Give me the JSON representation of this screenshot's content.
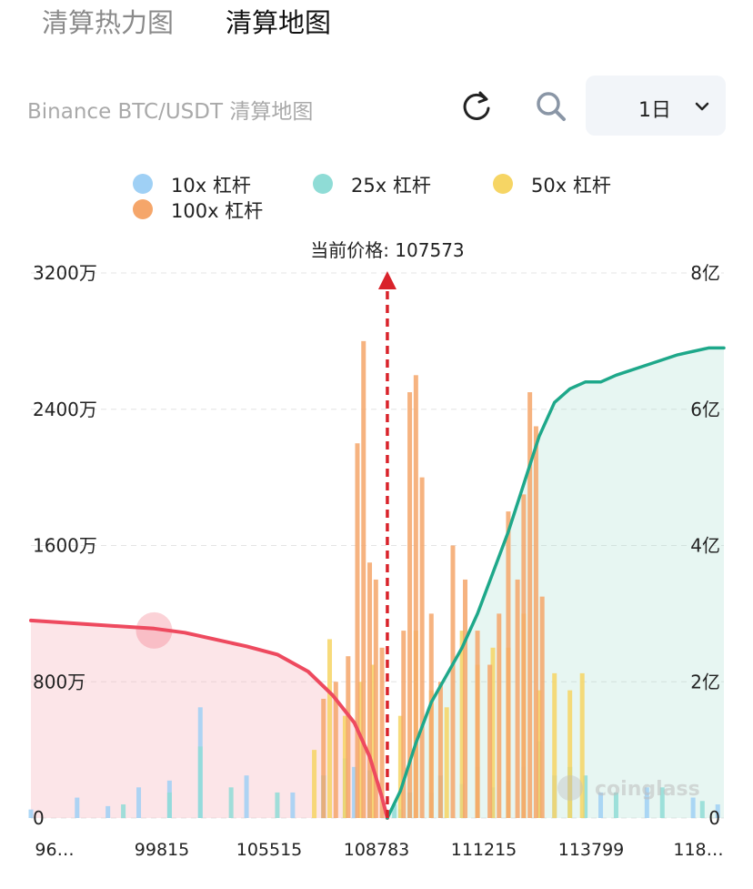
{
  "tabs": [
    {
      "label": "清算热力图",
      "active": false
    },
    {
      "label": "清算地图",
      "active": true
    }
  ],
  "header": {
    "subtitle": "Binance BTC/USDT 清算地图",
    "timeframe": "1日",
    "icons": [
      "refresh-icon",
      "search-icon",
      "chevron-down-icon"
    ]
  },
  "colors": {
    "lev10": "#9fd0f5",
    "lev25": "#8fdcd6",
    "lev50": "#f6d564",
    "lev100": "#f5a66a",
    "short_cum": "#ee4a5f",
    "long_cum": "#1ea88a",
    "current_price": "#d9232b"
  },
  "chart_data": {
    "type": "bar",
    "title": "",
    "current_price_label": "当前价格: 107573",
    "current_price": 107573,
    "legend": [
      {
        "name": "10x 杠杆",
        "color": "#9fd0f5"
      },
      {
        "name": "25x 杠杆",
        "color": "#8fdcd6"
      },
      {
        "name": "50x 杠杆",
        "color": "#f6d564"
      },
      {
        "name": "100x 杠杆",
        "color": "#f5a66a"
      }
    ],
    "legend_placement": "top",
    "x_tick_labels": [
      "96…",
      "99815",
      "105515",
      "108783",
      "111215",
      "113799",
      "118…"
    ],
    "x_range": [
      96000,
      118500
    ],
    "y_left": {
      "ticks": [
        "0",
        "800万",
        "1600万",
        "2400万",
        "3200万"
      ],
      "range": [
        0,
        32000000
      ]
    },
    "y_right": {
      "ticks": [
        "0",
        "2亿",
        "4亿",
        "6亿",
        "8亿"
      ],
      "range": [
        0,
        800000000
      ]
    },
    "grid": "horizontal dashed",
    "watermark": "coinglass",
    "series": [
      {
        "name": "10x 杠杆",
        "type": "bar",
        "x": [
          96000,
          97500,
          98500,
          99500,
          100500,
          101500,
          103000,
          104500,
          105500,
          106500,
          107000,
          108000,
          109000,
          110000,
          111000,
          112000,
          113000,
          114500,
          116000,
          117500,
          118300
        ],
        "y": [
          500000,
          1200000,
          700000,
          1800000,
          2200000,
          6500000,
          2500000,
          1500000,
          2500000,
          3000000,
          1500000,
          500000,
          1500000,
          2000000,
          1800000,
          3000000,
          2500000,
          1500000,
          1800000,
          1200000,
          800000
        ]
      },
      {
        "name": "25x 杠杆",
        "type": "bar",
        "x": [
          99000,
          100500,
          101500,
          102500,
          104000,
          105500,
          106200,
          107000,
          107800,
          108300,
          109300,
          110500,
          111500,
          112500,
          113500,
          114000,
          115000,
          116500,
          117800
        ],
        "y": [
          800000,
          1500000,
          4200000,
          1800000,
          1500000,
          2500000,
          3500000,
          2800000,
          800000,
          1500000,
          2500000,
          3000000,
          2200000,
          4500000,
          3000000,
          2500000,
          1500000,
          1800000,
          1000000
        ]
      },
      {
        "name": "50x 杠杆",
        "type": "bar",
        "x": [
          105200,
          105700,
          106200,
          106700,
          107100,
          108000,
          108500,
          109000,
          109500,
          110000,
          110500,
          111000,
          111500,
          112000,
          112500,
          113000,
          113500,
          113900
        ],
        "y": [
          4000000,
          10500000,
          6000000,
          8000000,
          9000000,
          6000000,
          11000000,
          7500000,
          6500000,
          11000000,
          9000000,
          10000000,
          10000000,
          12000000,
          7500000,
          8500000,
          7500000,
          8500000
        ]
      },
      {
        "name": "100x 杠杆",
        "type": "bar",
        "x": [
          105500,
          105900,
          106300,
          106600,
          106800,
          107000,
          107200,
          107400,
          108100,
          108300,
          108500,
          108700,
          109000,
          109300,
          109700,
          110100,
          110500,
          110900,
          111200,
          111500,
          111800,
          112000,
          112200,
          112400,
          112600
        ],
        "y": [
          7000000,
          8000000,
          9500000,
          22000000,
          28000000,
          15000000,
          14000000,
          10000000,
          11000000,
          25000000,
          26000000,
          20000000,
          12000000,
          8000000,
          16000000,
          14000000,
          11000000,
          9000000,
          12000000,
          18000000,
          14000000,
          19000000,
          25000000,
          23000000,
          13000000
        ]
      },
      {
        "name": "",
        "type": "line",
        "axis": "right",
        "x": [
          96000,
          98000,
          100000,
          101000,
          102000,
          103000,
          104000,
          105000,
          105800,
          106500,
          107000,
          107400,
          107573
        ],
        "y": [
          290000000,
          284000000,
          278000000,
          272000000,
          262000000,
          252000000,
          240000000,
          215000000,
          180000000,
          140000000,
          90000000,
          30000000,
          0
        ]
      },
      {
        "name": "",
        "type": "line",
        "axis": "right",
        "x": [
          107573,
          108000,
          108500,
          109000,
          109500,
          110000,
          110500,
          111000,
          111500,
          112000,
          112500,
          113000,
          113500,
          114000,
          114500,
          115000,
          116000,
          117000,
          118000,
          118500
        ],
        "y": [
          0,
          40000000,
          110000000,
          170000000,
          210000000,
          250000000,
          300000000,
          360000000,
          420000000,
          490000000,
          560000000,
          610000000,
          630000000,
          640000000,
          640000000,
          650000000,
          665000000,
          680000000,
          690000000,
          690000000
        ]
      }
    ]
  }
}
